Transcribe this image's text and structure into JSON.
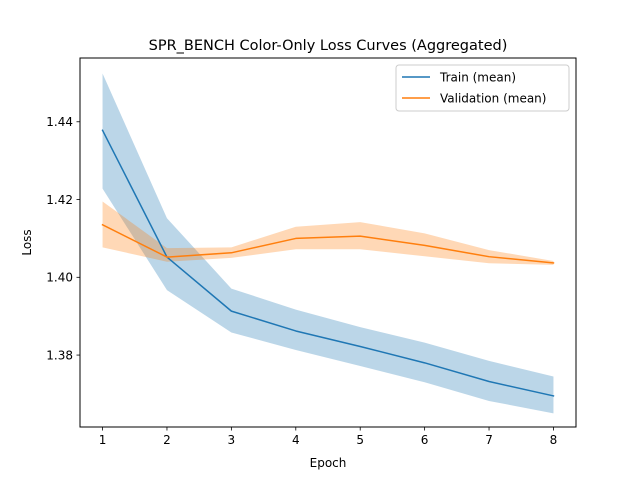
{
  "chart_data": {
    "type": "line",
    "title": "SPR_BENCH Color-Only Loss Curves (Aggregated)",
    "xlabel": "Epoch",
    "ylabel": "Loss",
    "x": [
      1,
      2,
      3,
      4,
      5,
      6,
      7,
      8
    ],
    "xlim": [
      0.65,
      8.35
    ],
    "ylim": [
      1.3615,
      1.4564
    ],
    "xticks": [
      1,
      2,
      3,
      4,
      5,
      6,
      7,
      8
    ],
    "yticks": [
      1.38,
      1.4,
      1.42,
      1.44
    ],
    "ytick_labels": [
      "1.38",
      "1.40",
      "1.42",
      "1.44"
    ],
    "grid": false,
    "legend_position": "top-right",
    "series": [
      {
        "name": "Train (mean)",
        "color": "#1f77b4",
        "band_color": "#1f77b4",
        "values": [
          1.4378,
          1.4052,
          1.3913,
          1.3862,
          1.3822,
          1.378,
          1.3732,
          1.3695
        ],
        "lower": [
          1.4228,
          1.3967,
          1.3858,
          1.3813,
          1.3772,
          1.373,
          1.3682,
          1.365
        ],
        "upper": [
          1.4524,
          1.4152,
          1.3971,
          1.3917,
          1.3872,
          1.3832,
          1.3785,
          1.3745
        ]
      },
      {
        "name": "Validation (mean)",
        "color": "#ff7f0e",
        "band_color": "#ff7f0e",
        "values": [
          1.4135,
          1.4052,
          1.4063,
          1.41,
          1.4106,
          1.4082,
          1.4053,
          1.4037
        ],
        "lower": [
          1.4077,
          1.404,
          1.405,
          1.4072,
          1.4072,
          1.4054,
          1.4036,
          1.4032
        ],
        "upper": [
          1.4195,
          1.4075,
          1.4077,
          1.413,
          1.4142,
          1.4113,
          1.407,
          1.4042
        ]
      }
    ]
  }
}
